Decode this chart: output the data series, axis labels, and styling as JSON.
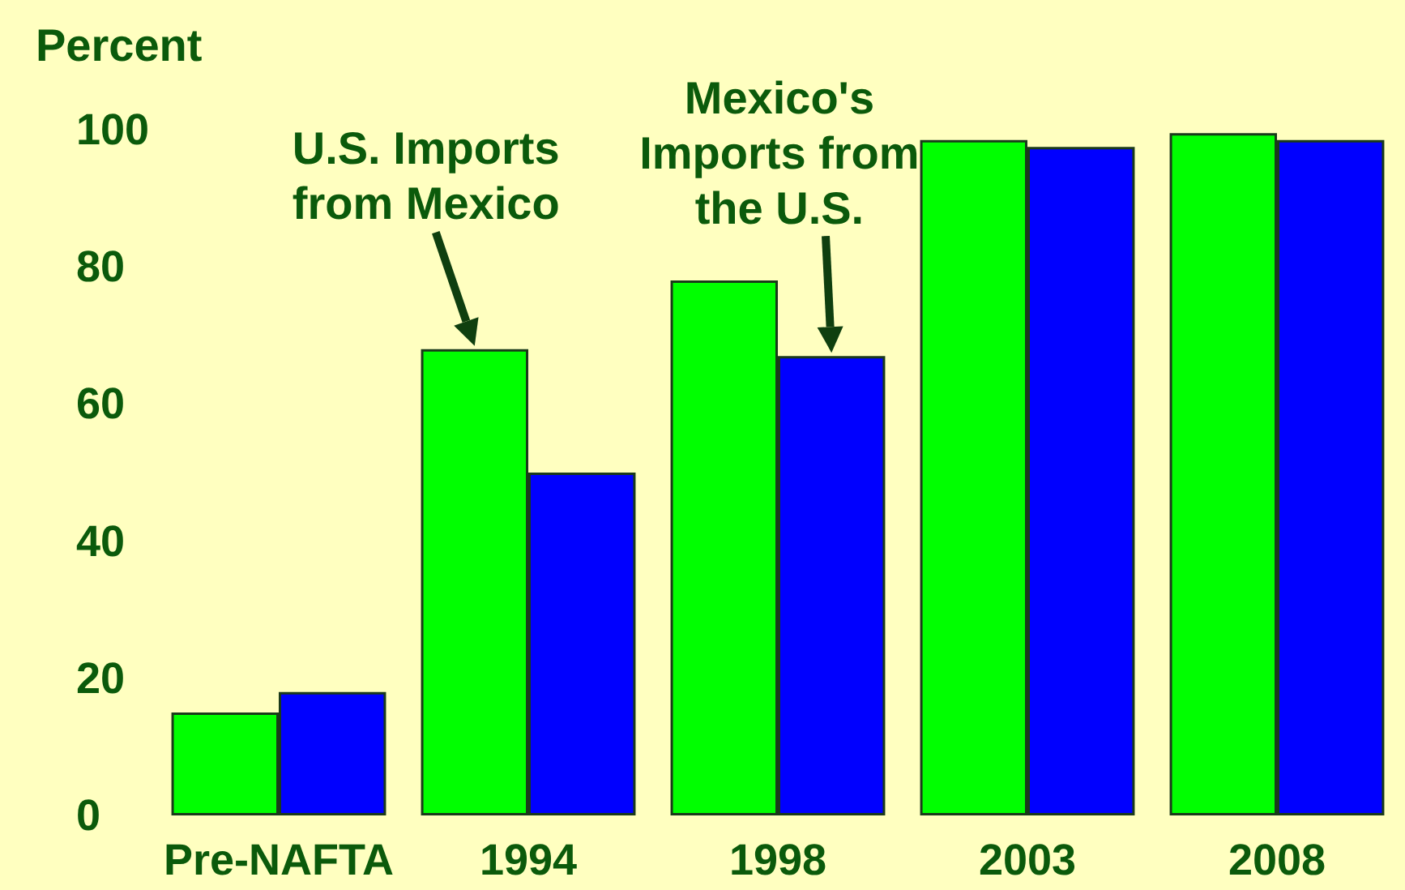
{
  "chart_data": {
    "type": "bar",
    "ylabel": "Percent",
    "categories": [
      "Pre-NAFTA",
      "1994",
      "1998",
      "2003",
      "2008"
    ],
    "series": [
      {
        "color": "#00ff00",
        "values": [
          15,
          68,
          78,
          98.5,
          99.5
        ]
      },
      {
        "color": "#0000ff",
        "values": [
          18,
          50,
          67,
          97.5,
          98.5
        ]
      }
    ],
    "ylim": [
      0,
      100
    ],
    "yticks": [
      0,
      20,
      40,
      60,
      80,
      100
    ],
    "grid": false,
    "annotations": [
      {
        "text": "U.S. Imports\nfrom Mexico",
        "x": "1994",
        "y": 68
      },
      {
        "text": "Mexico's\nImports from\nthe U.S.",
        "x": "1998",
        "y": 67
      }
    ]
  }
}
